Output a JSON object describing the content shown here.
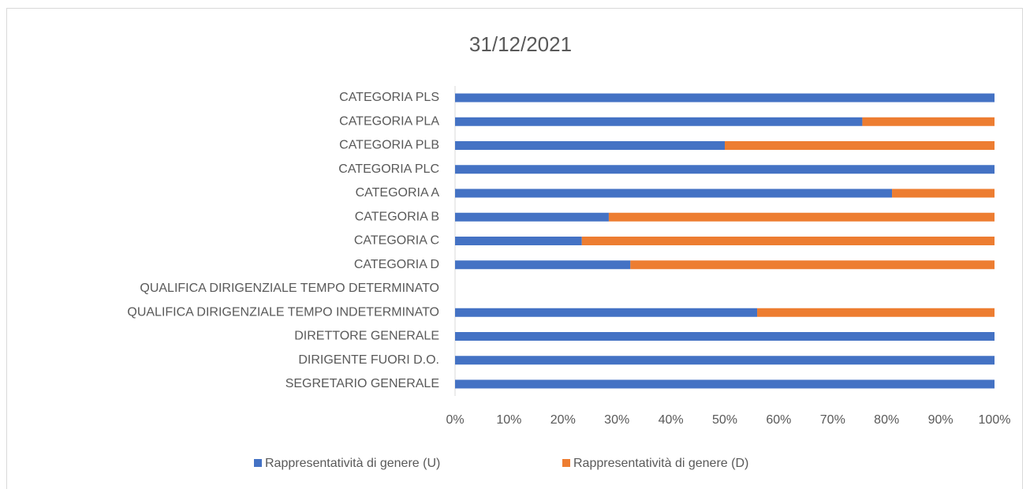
{
  "chart_data": {
    "type": "bar",
    "orientation": "horizontal",
    "stacked": true,
    "title": "31/12/2021",
    "categories": [
      "CATEGORIA PLS",
      "CATEGORIA PLA",
      "CATEGORIA PLB",
      "CATEGORIA PLC",
      "CATEGORIA A",
      "CATEGORIA B",
      "CATEGORIA C",
      "CATEGORIA D",
      "QUALIFICA DIRIGENZIALE TEMPO DETERMINATO",
      "QUALIFICA DIRIGENZIALE TEMPO INDETERMINATO",
      "DIRETTORE  GENERALE",
      "DIRIGENTE FUORI D.O.",
      "SEGRETARIO  GENERALE"
    ],
    "series": [
      {
        "name": "Rappresentatività di genere (U)",
        "color": "#4472c4",
        "values": [
          100,
          75.5,
          50,
          100,
          81,
          28.5,
          23.5,
          32.5,
          null,
          56,
          100,
          100,
          100
        ]
      },
      {
        "name": "Rappresentatività di genere (D)",
        "color": "#ed7d31",
        "values": [
          0,
          24.5,
          50,
          0,
          19,
          71.5,
          76.5,
          67.5,
          null,
          44,
          0,
          0,
          0
        ]
      }
    ],
    "xlim": [
      0,
      100
    ],
    "xticks": [
      {
        "value": 0,
        "label": "0%"
      },
      {
        "value": 10,
        "label": "10%"
      },
      {
        "value": 20,
        "label": "20%"
      },
      {
        "value": 30,
        "label": "30%"
      },
      {
        "value": 40,
        "label": "40%"
      },
      {
        "value": 50,
        "label": "50%"
      },
      {
        "value": 60,
        "label": "60%"
      },
      {
        "value": 70,
        "label": "70%"
      },
      {
        "value": 80,
        "label": "80%"
      },
      {
        "value": 90,
        "label": "90%"
      },
      {
        "value": 100,
        "label": "100%"
      }
    ],
    "legend": "bottom"
  }
}
